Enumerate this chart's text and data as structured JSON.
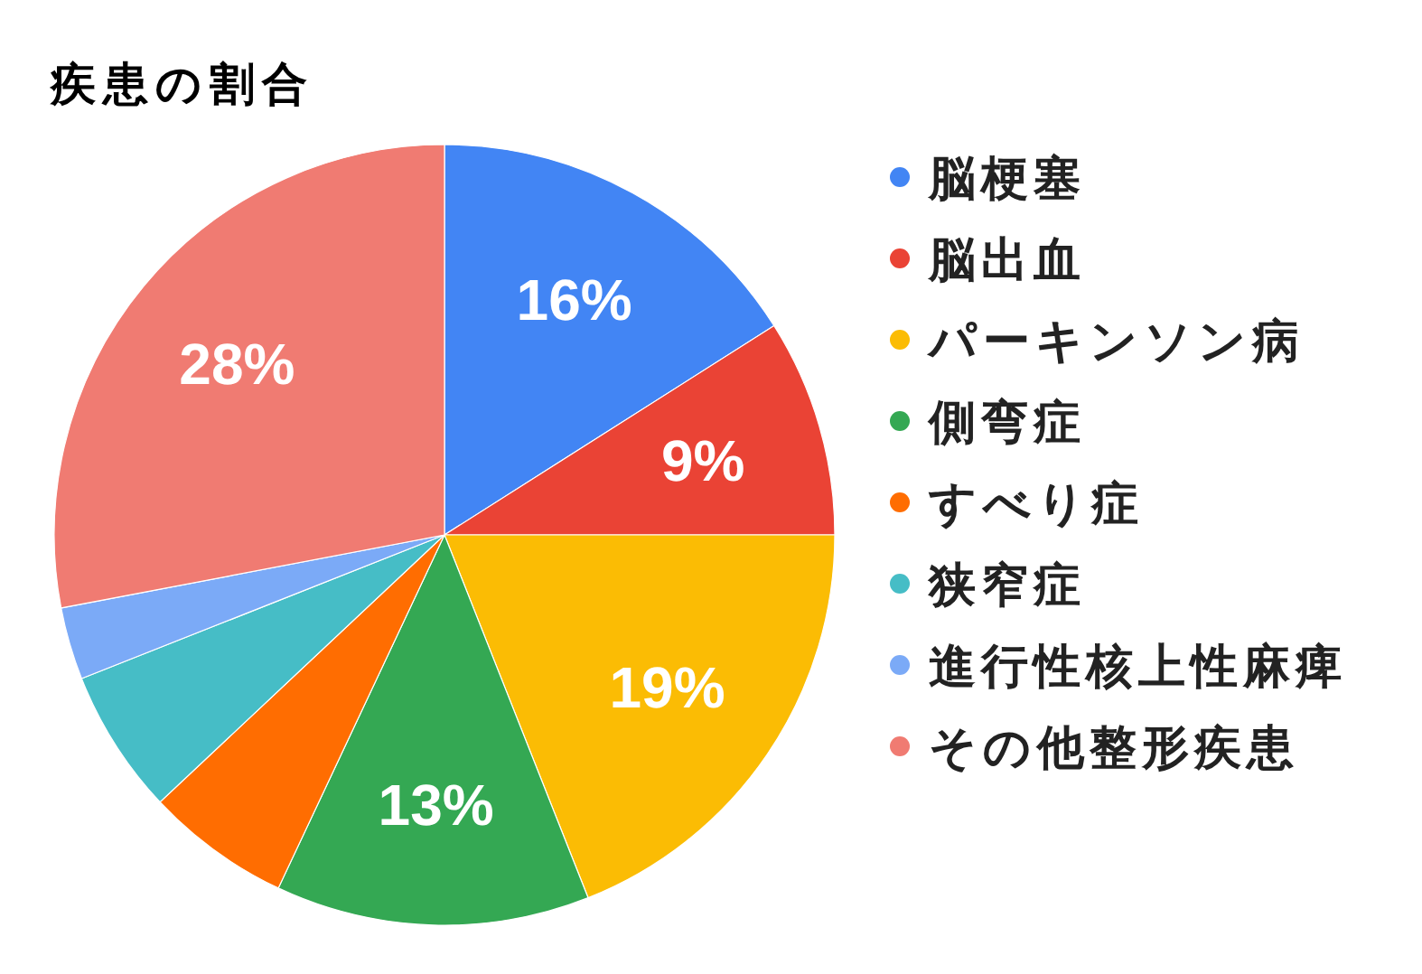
{
  "chart_data": {
    "type": "pie",
    "title": "疾患の割合",
    "categories": [
      "脳梗塞",
      "脳出血",
      "パーキンソン病",
      "側弯症",
      "すべり症",
      "狭窄症",
      "進行性核上性麻痺",
      "その他整形疾患"
    ],
    "values": [
      16,
      9,
      19,
      13,
      6,
      6,
      3,
      28
    ],
    "colors": [
      "#4285f4",
      "#ea4335",
      "#fbbc04",
      "#34a853",
      "#ff6d01",
      "#46bdc6",
      "#7baaf7",
      "#f07b72"
    ],
    "value_labels": [
      "16%",
      "9%",
      "19%",
      "13%",
      null,
      null,
      null,
      "28%"
    ],
    "legend": "right"
  }
}
